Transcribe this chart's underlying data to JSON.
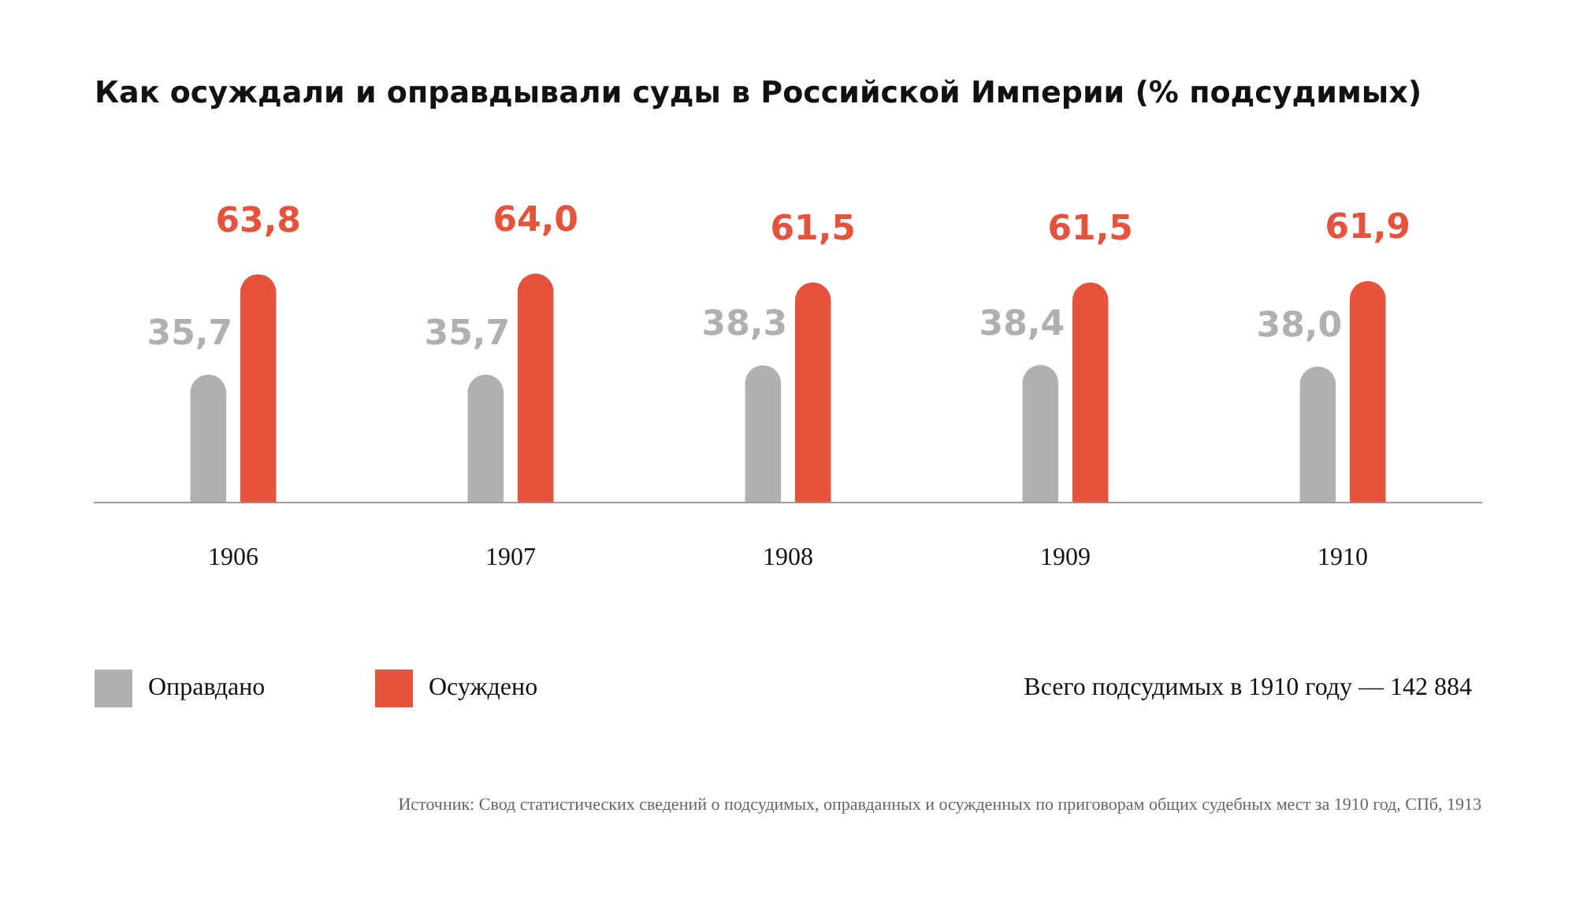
{
  "chart_data": {
    "type": "bar",
    "title": "Как осуждали и оправдывали суды в Российской Империи (% подсудимых)",
    "categories": [
      "1906",
      "1907",
      "1908",
      "1909",
      "1910"
    ],
    "series": [
      {
        "name": "Оправдано",
        "color": "#b0b0b0",
        "values": [
          35.7,
          35.7,
          38.3,
          38.4,
          38.0
        ],
        "value_labels": [
          "35,7",
          "35,7",
          "38,3",
          "38,4",
          "38,0"
        ]
      },
      {
        "name": "Осуждено",
        "color": "#e5533c",
        "values": [
          63.8,
          64.0,
          61.5,
          61.5,
          61.9
        ],
        "value_labels": [
          "63,8",
          "64,0",
          "61,5",
          "61,5",
          "61,9"
        ]
      }
    ],
    "legend": "bottom left",
    "grid": false,
    "annotations": [
      "Всего подсудимых в 1910 году — 142 884",
      "Источник: Свод статистических сведений о подсудимых, оправданных и осужденных по приговорам общих судебных мест за 1910 год, СПб, 1913"
    ]
  }
}
